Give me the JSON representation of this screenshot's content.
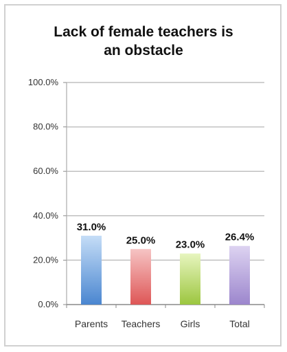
{
  "chart_data": {
    "type": "bar",
    "title_lines": [
      "Lack of female teachers is",
      "an obstacle"
    ],
    "categories": [
      "Parents",
      "Teachers",
      "Girls",
      "Total"
    ],
    "values": [
      31.0,
      25.0,
      23.0,
      26.4
    ],
    "data_labels": [
      "31.0%",
      "25.0%",
      "23.0%",
      "26.4%"
    ],
    "ylim": [
      0,
      100
    ],
    "yticks": [
      0,
      20,
      40,
      60,
      80,
      100
    ],
    "ytick_labels": [
      "0.0%",
      "20.0%",
      "40.0%",
      "60.0%",
      "80.0%",
      "100.0%"
    ],
    "grid": true,
    "legend": "none",
    "bar_colors": [
      [
        "#c5ddf7",
        "#4a86d0"
      ],
      [
        "#f6c4c4",
        "#de5656"
      ],
      [
        "#e7f5bf",
        "#9cc63f"
      ],
      [
        "#ddd3f1",
        "#9c86cd"
      ]
    ],
    "gridline_color": "#c0c0c0"
  }
}
